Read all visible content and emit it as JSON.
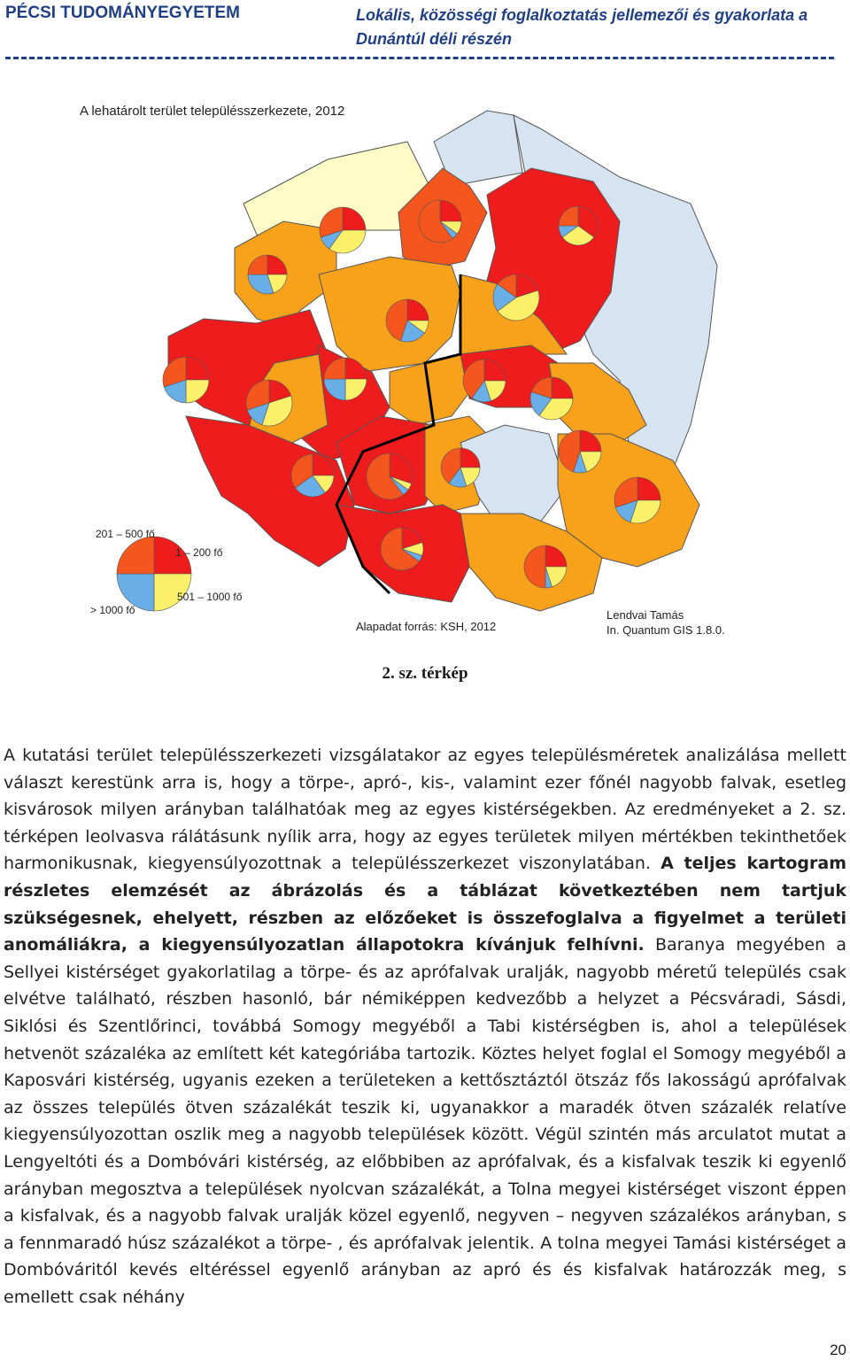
{
  "header": {
    "university": "PÉCSI TUDOMÁNYEGYETEM",
    "project_title": "Lokális, közösségi foglalkoztatás jellemezői és gyakorlata a Dunántúl déli részén"
  },
  "map": {
    "title": "A lehatárolt terület településszerkezete, 2012",
    "source": "Alapadat forrás: KSH, 2012",
    "author": "Lendvai Tamás",
    "software": "In. Quantum GIS 1.8.0.",
    "legend": {
      "label_201_500": "201 – 500 fő",
      "label_1_200": "1 – 200 fő",
      "label_501_1000": "501 – 1000 fő",
      "label_1000_plus": "> 1000 fő"
    },
    "colors": {
      "red": "#ee1c1c",
      "orange_red": "#f5561e",
      "orange": "#f8a11a",
      "yellow": "#fbf06a",
      "blue": "#6aaee8",
      "light_blue": "#d6e4f1",
      "pale_yellow": "#fefbc6"
    }
  },
  "caption": "2. sz. térkép",
  "body": {
    "p1": "A kutatási terület településszerkezeti vizsgálatakor az egyes településméretek analizálása mellett választ kerestünk arra is, hogy a törpe-, apró-, kis-, valamint ezer főnél nagyobb falvak, esetleg kisvárosok milyen arányban találhatóak meg az egyes kistérségekben. Az eredményeket a 2. sz. térképen leolvasva rálátásunk nyílik arra, hogy az egyes területek milyen mértékben tekinthetőek harmonikusnak, kiegyensúlyozottnak a településszerkezet viszonylatában.",
    "p_bold": "A teljes kartogram részletes elemzését az ábrázolás és a táblázat következtében nem tartjuk szükségesnek, ehelyett, részben az előzőeket is összefoglalva a figyelmet a területi anomáliákra, a kiegyensúlyozatlan állapotokra kívánjuk felhívni.",
    "p2": "Baranya megyében a Sellyei kistérséget gyakorlatilag a törpe- és az aprófalvak uralják, nagyobb méretű település csak elvétve található, részben hasonló, bár némiképpen kedvezőbb a helyzet a Pécsváradi, Sásdi, Siklósi és Szentlőrinci, továbbá Somogy megyéből a Tabi kistérségben is, ahol a települések hetvenöt százaléka az említett két kategóriába tartozik. Köztes helyet foglal el Somogy megyéből a Kaposvári kistérség, ugyanis ezeken a területeken a kettősztáztól ötszáz fős lakosságú aprófalvak az összes település ötven százalékát teszik ki, ugyanakkor a maradék ötven százalék relatíve kiegyensúlyozottan oszlik meg a nagyobb települések között. Végül szintén más arculatot mutat a Lengyeltóti és a Dombóvári kistérség, az előbbiben az aprófalvak, és a kisfalvak teszik ki egyenlő arányban megosztva a települések nyolcvan százalékát, a Tolna megyei kistérséget viszont éppen a kisfalvak, és a nagyobb falvak uralják közel egyenlő, negyven – negyven százalékos arányban, s a fennmaradó húsz százalékot a törpe- , és aprófalvak jelentik. A tolna megyei Tamási kistérséget a Dombóváritól kevés eltéréssel egyenlő arányban az apró és és kisfalvak határozzák meg, s emellett csak néhány"
  },
  "page_number": "20"
}
